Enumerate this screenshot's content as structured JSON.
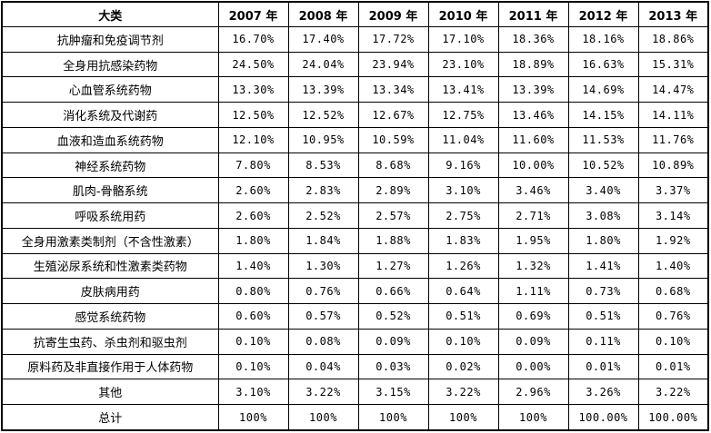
{
  "colors": {
    "border": "#000000",
    "text": "#000000",
    "background": "#ffffff"
  },
  "chart_data": {
    "type": "table",
    "title": "",
    "columns": [
      "大类",
      "2007 年",
      "2008 年",
      "2009 年",
      "2010 年",
      "2011 年",
      "2012 年",
      "2013 年"
    ],
    "rows": [
      {
        "label": "抗肿瘤和免疫调节剂",
        "values": [
          "16.70%",
          "17.40%",
          "17.72%",
          "17.10%",
          "18.36%",
          "18.16%",
          "18.86%"
        ]
      },
      {
        "label": "全身用抗感染药物",
        "values": [
          "24.50%",
          "24.04%",
          "23.94%",
          "23.10%",
          "18.89%",
          "16.63%",
          "15.31%"
        ]
      },
      {
        "label": "心血管系统药物",
        "values": [
          "13.30%",
          "13.39%",
          "13.34%",
          "13.41%",
          "13.39%",
          "14.69%",
          "14.47%"
        ]
      },
      {
        "label": "消化系统及代谢药",
        "values": [
          "12.50%",
          "12.52%",
          "12.67%",
          "12.75%",
          "13.46%",
          "14.15%",
          "14.11%"
        ]
      },
      {
        "label": "血液和造血系统药物",
        "values": [
          "12.10%",
          "10.95%",
          "10.59%",
          "11.04%",
          "11.60%",
          "11.53%",
          "11.76%"
        ]
      },
      {
        "label": "神经系统药物",
        "values": [
          "7.80%",
          "8.53%",
          "8.68%",
          "9.16%",
          "10.00%",
          "10.52%",
          "10.89%"
        ]
      },
      {
        "label": "肌肉-骨骼系统",
        "values": [
          "2.60%",
          "2.83%",
          "2.89%",
          "3.10%",
          "3.46%",
          "3.40%",
          "3.37%"
        ]
      },
      {
        "label": "呼吸系统用药",
        "values": [
          "2.60%",
          "2.52%",
          "2.57%",
          "2.75%",
          "2.71%",
          "3.08%",
          "3.14%"
        ]
      },
      {
        "label": "全身用激素类制剂（不含性激素）",
        "values": [
          "1.80%",
          "1.84%",
          "1.88%",
          "1.83%",
          "1.95%",
          "1.80%",
          "1.92%"
        ]
      },
      {
        "label": "生殖泌尿系统和性激素类药物",
        "values": [
          "1.40%",
          "1.30%",
          "1.27%",
          "1.26%",
          "1.32%",
          "1.41%",
          "1.40%"
        ]
      },
      {
        "label": "皮肤病用药",
        "values": [
          "0.80%",
          "0.76%",
          "0.66%",
          "0.64%",
          "1.11%",
          "0.73%",
          "0.68%"
        ]
      },
      {
        "label": "感觉系统药物",
        "values": [
          "0.60%",
          "0.57%",
          "0.52%",
          "0.51%",
          "0.69%",
          "0.51%",
          "0.76%"
        ]
      },
      {
        "label": "抗寄生虫药、杀虫剂和驱虫剂",
        "values": [
          "0.10%",
          "0.08%",
          "0.09%",
          "0.10%",
          "0.09%",
          "0.11%",
          "0.10%"
        ]
      },
      {
        "label": "原料药及非直接作用于人体药物",
        "values": [
          "0.10%",
          "0.04%",
          "0.03%",
          "0.02%",
          "0.00%",
          "0.01%",
          "0.01%"
        ]
      },
      {
        "label": "其他",
        "values": [
          "3.10%",
          "3.22%",
          "3.15%",
          "3.22%",
          "2.96%",
          "3.26%",
          "3.22%"
        ]
      },
      {
        "label": "总计",
        "values": [
          "100%",
          "100%",
          "100%",
          "100%",
          "100%",
          "100.00%",
          "100.00%"
        ]
      }
    ]
  }
}
